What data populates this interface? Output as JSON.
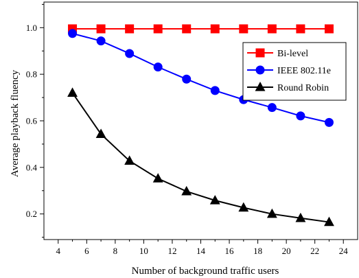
{
  "chart_data": {
    "type": "line",
    "xlabel": "Number of background traffic users",
    "ylabel": "Average playback fluency",
    "xlim": [
      3,
      25
    ],
    "ylim": [
      0.09,
      1.11
    ],
    "xticks": [
      4,
      6,
      8,
      10,
      12,
      14,
      16,
      18,
      20,
      22,
      24
    ],
    "yticks": [
      0.2,
      0.4,
      0.6,
      0.8,
      1.0
    ],
    "ytick_labels": [
      "0.2",
      "0.4",
      "0.6",
      "0.8",
      "1.0"
    ],
    "grid": false,
    "legend_position": "right",
    "x": [
      5,
      7,
      9,
      11,
      13,
      15,
      17,
      19,
      21,
      23
    ],
    "series": [
      {
        "name": "Bi-level",
        "color": "#ff0000",
        "marker": "square",
        "values": [
          0.995,
          0.995,
          0.995,
          0.995,
          0.995,
          0.995,
          0.995,
          0.995,
          0.995,
          0.995
        ]
      },
      {
        "name": "IEEE 802.11e",
        "color": "#0000ff",
        "marker": "circle",
        "values": [
          0.975,
          0.943,
          0.889,
          0.831,
          0.779,
          0.73,
          0.691,
          0.657,
          0.621,
          0.593
        ]
      },
      {
        "name": "Round Robin",
        "color": "#000000",
        "marker": "triangle",
        "values": [
          0.72,
          0.543,
          0.428,
          0.352,
          0.297,
          0.258,
          0.227,
          0.2,
          0.182,
          0.165
        ]
      }
    ]
  }
}
